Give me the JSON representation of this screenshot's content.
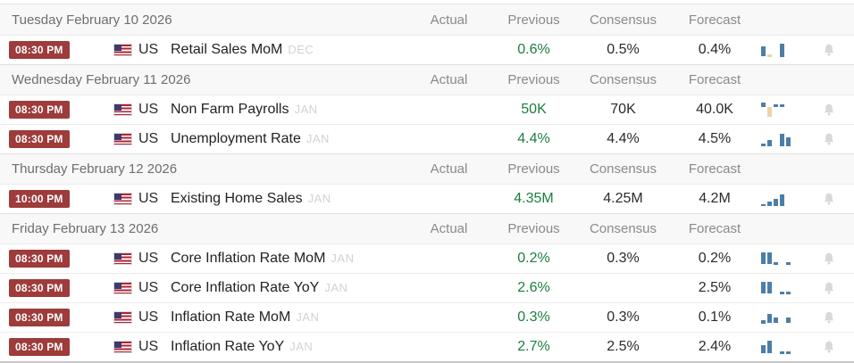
{
  "columns": {
    "actual": "Actual",
    "previous": "Previous",
    "consensus": "Consensus",
    "forecast": "Forecast"
  },
  "colors": {
    "badge_red": "#9e3b3b",
    "previous_green": "#1a7f3f",
    "spark_blue": "#4d7ea8",
    "spark_tan": "#e9d5a5",
    "bell_gray": "#d9d9d9"
  },
  "days": [
    {
      "date": "Tuesday February 10 2026",
      "events": [
        {
          "time": "08:30 PM",
          "country": "US",
          "name": "Retail Sales MoM",
          "ref": "DEC",
          "actual": "",
          "previous": "0.6%",
          "consensus": "0.5%",
          "forecast": "0.4%",
          "spark": [
            {
              "c": "b",
              "h": 11,
              "t": 5
            },
            {
              "c": "t",
              "h": 3,
              "t": 14
            },
            {
              "c": "gap"
            },
            {
              "c": "b",
              "h": 15,
              "t": 2
            }
          ]
        }
      ]
    },
    {
      "date": "Wednesday February 11 2026",
      "events": [
        {
          "time": "08:30 PM",
          "country": "US",
          "name": "Non Farm Payrolls",
          "ref": "JAN",
          "actual": "",
          "previous": "50K",
          "consensus": "70K",
          "forecast": "40.0K",
          "spark": [
            {
              "c": "b",
              "h": 5,
              "t": 1
            },
            {
              "c": "t",
              "h": 11,
              "t": 6
            },
            {
              "c": "b",
              "h": 3,
              "t": 3
            },
            {
              "c": "b",
              "h": 3,
              "t": 3
            }
          ]
        },
        {
          "time": "08:30 PM",
          "country": "US",
          "name": "Unemployment Rate",
          "ref": "JAN",
          "actual": "",
          "previous": "4.4%",
          "consensus": "4.4%",
          "forecast": "4.5%",
          "spark": [
            {
              "c": "b",
              "h": 3,
              "t": 14
            },
            {
              "c": "b",
              "h": 7,
              "t": 10
            },
            {
              "c": "gap"
            },
            {
              "c": "b",
              "h": 14,
              "t": 3
            },
            {
              "c": "b",
              "h": 10,
              "t": 7
            }
          ]
        }
      ]
    },
    {
      "date": "Thursday February 12 2026",
      "events": [
        {
          "time": "10:00 PM",
          "country": "US",
          "name": "Existing Home Sales",
          "ref": "JAN",
          "actual": "",
          "previous": "4.35M",
          "consensus": "4.25M",
          "forecast": "4.2M",
          "spark": [
            {
              "c": "b",
              "h": 2,
              "t": 15
            },
            {
              "c": "b",
              "h": 5,
              "t": 12
            },
            {
              "c": "b",
              "h": 8,
              "t": 9
            },
            {
              "c": "b",
              "h": 13,
              "t": 4
            }
          ]
        }
      ]
    },
    {
      "date": "Friday February 13 2026",
      "events": [
        {
          "time": "08:30 PM",
          "country": "US",
          "name": "Core Inflation Rate MoM",
          "ref": "JAN",
          "actual": "",
          "previous": "0.2%",
          "consensus": "0.3%",
          "forecast": "0.2%",
          "spark": [
            {
              "c": "b",
              "h": 13,
              "t": 2
            },
            {
              "c": "b",
              "h": 13,
              "t": 2
            },
            {
              "c": "b",
              "h": 3,
              "t": 13
            },
            {
              "c": "gap"
            },
            {
              "c": "b",
              "h": 3,
              "t": 13
            }
          ]
        },
        {
          "time": "08:30 PM",
          "country": "US",
          "name": "Core Inflation Rate YoY",
          "ref": "JAN",
          "actual": "",
          "previous": "2.6%",
          "consensus": "",
          "forecast": "2.5%",
          "spark": [
            {
              "c": "b",
              "h": 13,
              "t": 2
            },
            {
              "c": "b",
              "h": 13,
              "t": 2
            },
            {
              "c": "gap"
            },
            {
              "c": "b",
              "h": 3,
              "t": 13
            },
            {
              "c": "b",
              "h": 3,
              "t": 13
            }
          ]
        },
        {
          "time": "08:30 PM",
          "country": "US",
          "name": "Inflation Rate MoM",
          "ref": "JAN",
          "actual": "",
          "previous": "0.3%",
          "consensus": "0.3%",
          "forecast": "0.1%",
          "spark": [
            {
              "c": "b",
              "h": 4,
              "t": 12
            },
            {
              "c": "b",
              "h": 10,
              "t": 5
            },
            {
              "c": "b",
              "h": 6,
              "t": 9
            },
            {
              "c": "gap"
            },
            {
              "c": "b",
              "h": 6,
              "t": 9
            }
          ]
        },
        {
          "time": "08:30 PM",
          "country": "US",
          "name": "Inflation Rate YoY",
          "ref": "JAN",
          "actual": "",
          "previous": "2.7%",
          "consensus": "2.5%",
          "forecast": "2.4%",
          "spark": [
            {
              "c": "b",
              "h": 9,
              "t": 7
            },
            {
              "c": "b",
              "h": 14,
              "t": 2
            },
            {
              "c": "gap"
            },
            {
              "c": "b",
              "h": 3,
              "t": 14
            },
            {
              "c": "b",
              "h": 3,
              "t": 14
            }
          ]
        }
      ]
    }
  ]
}
